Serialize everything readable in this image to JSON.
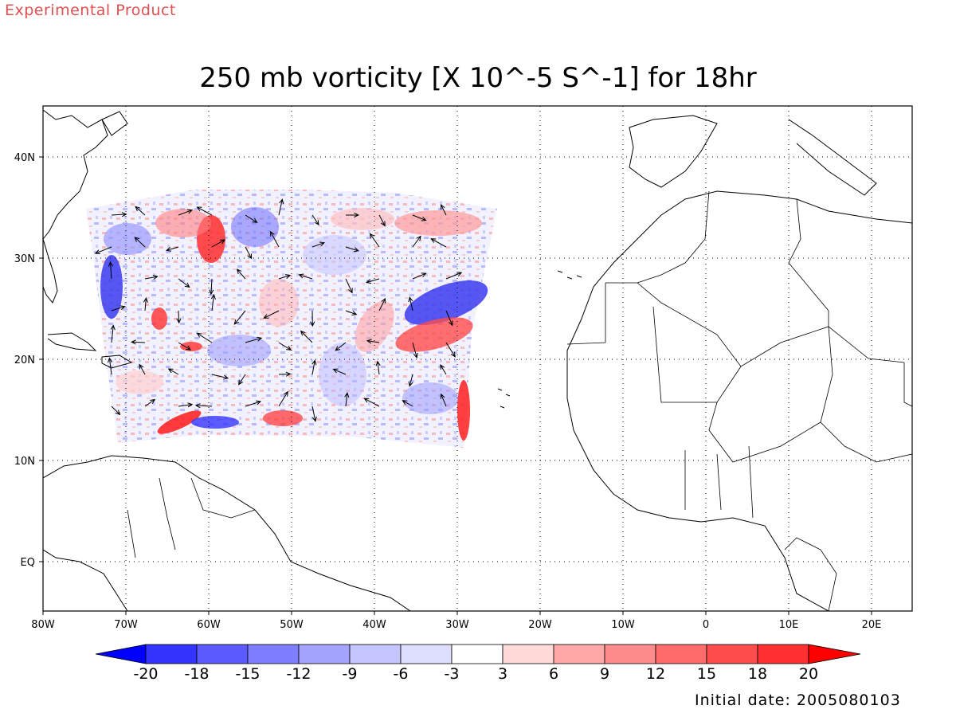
{
  "header": {
    "product_label": "Experimental Product",
    "title": "250 mb vorticity [X 10^-5 S^-1] for 18hr"
  },
  "map": {
    "lon_labels": [
      "80W",
      "70W",
      "60W",
      "50W",
      "40W",
      "30W",
      "20W",
      "10W",
      "0",
      "10E",
      "20E"
    ],
    "lat_labels": [
      "40N",
      "30N",
      "20N",
      "10N",
      "EQ"
    ],
    "grid_lines": "dotted"
  },
  "colorbar": {
    "tick_labels": [
      "-20",
      "-18",
      "-15",
      "-12",
      "-9",
      "-6",
      "-3",
      "3",
      "6",
      "9",
      "12",
      "15",
      "18",
      "20"
    ],
    "colors": [
      "#0000ff",
      "#3434ff",
      "#5a5aff",
      "#7e7eff",
      "#a4a4ff",
      "#d2d2ff",
      "#ffffff",
      "#ffd8d8",
      "#ffa8a8",
      "#ff8282",
      "#ff6a6a",
      "#ff4c4c",
      "#ff3030",
      "#ff0000"
    ]
  },
  "footer": {
    "initial_date": "Initial date: 2005080103"
  }
}
